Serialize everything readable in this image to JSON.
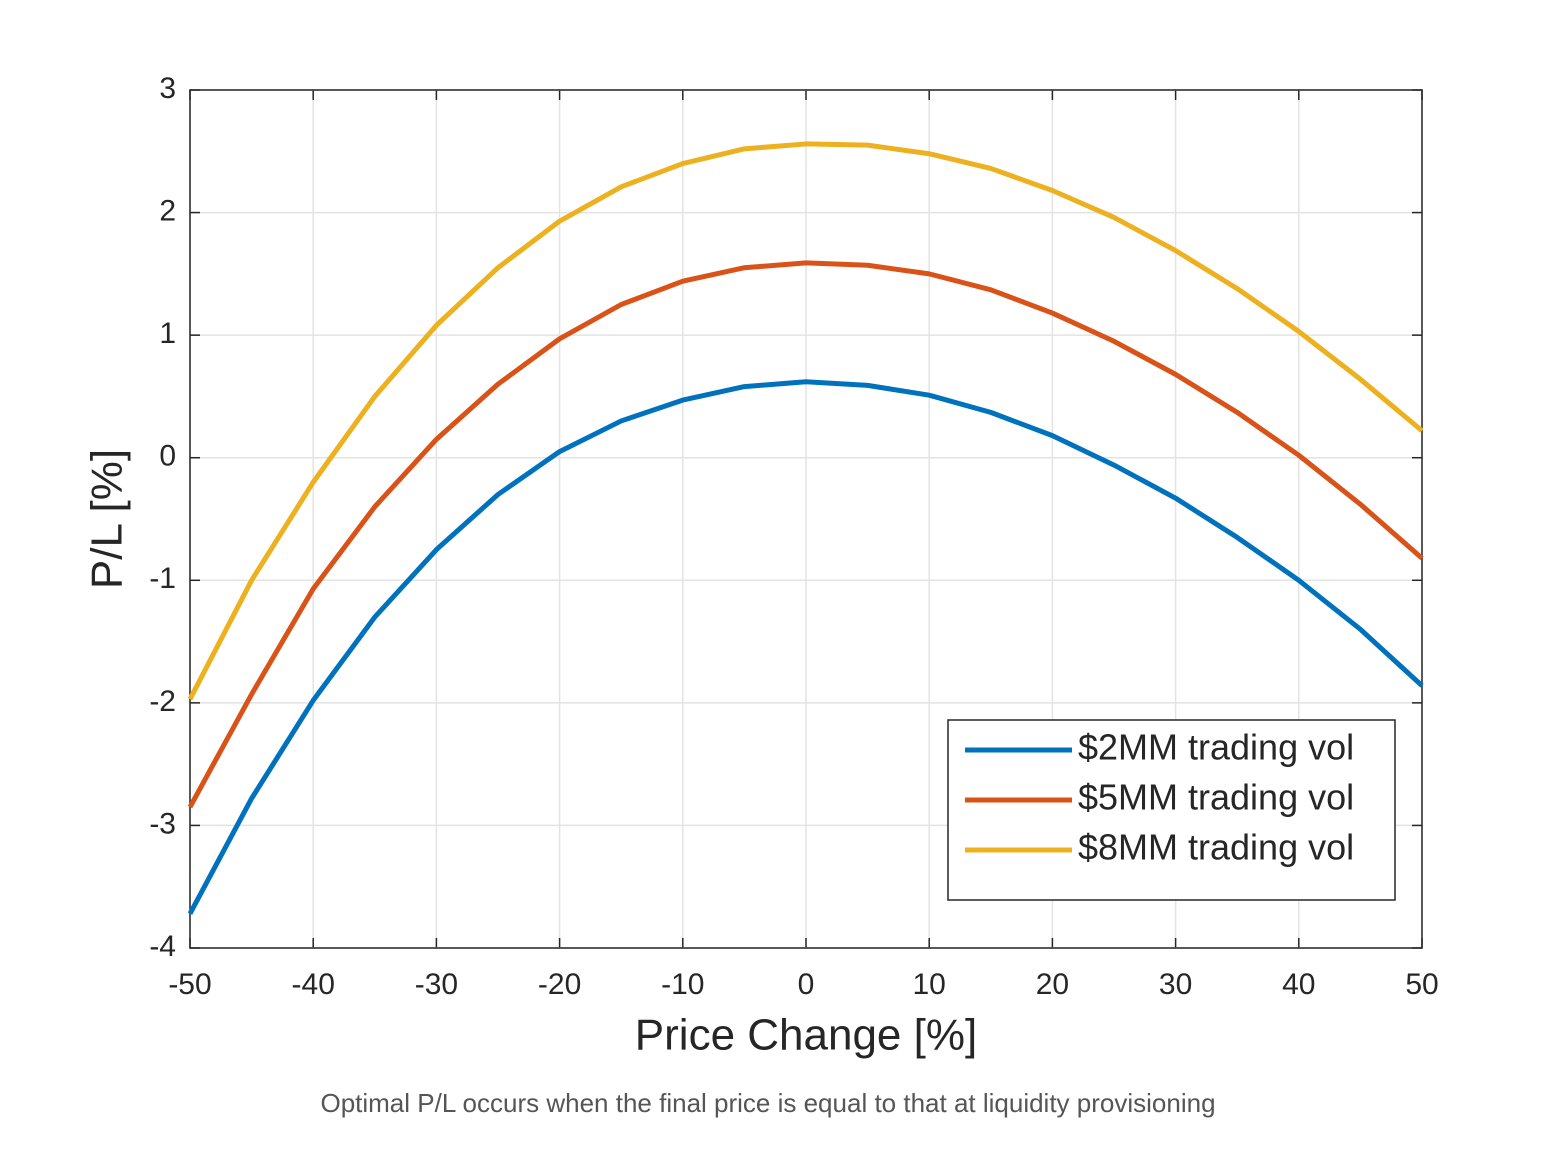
{
  "chart_data": {
    "type": "line",
    "xlabel": "Price Change [%]",
    "ylabel": "P/L [%]",
    "caption": "Optimal P/L occurs when the final price is equal to that at liquidity provisioning",
    "x": [
      -50,
      -45,
      -40,
      -35,
      -30,
      -25,
      -20,
      -15,
      -10,
      -5,
      0,
      5,
      10,
      15,
      20,
      25,
      30,
      35,
      40,
      45,
      50
    ],
    "series": [
      {
        "name": "$2MM trading vol",
        "color": "#0072bd",
        "values": [
          -3.72,
          -2.78,
          -1.98,
          -1.3,
          -0.75,
          -0.3,
          0.05,
          0.3,
          0.47,
          0.58,
          0.62,
          0.59,
          0.51,
          0.37,
          0.18,
          -0.06,
          -0.33,
          -0.65,
          -1.0,
          -1.4,
          -1.86
        ]
      },
      {
        "name": "$5MM trading vol",
        "color": "#d95319",
        "values": [
          -2.85,
          -1.93,
          -1.07,
          -0.4,
          0.15,
          0.6,
          0.97,
          1.25,
          1.44,
          1.55,
          1.59,
          1.57,
          1.5,
          1.37,
          1.18,
          0.95,
          0.68,
          0.37,
          0.02,
          -0.38,
          -0.82
        ]
      },
      {
        "name": "$8MM trading vol",
        "color": "#edb120",
        "values": [
          -1.97,
          -1.0,
          -0.2,
          0.5,
          1.08,
          1.55,
          1.93,
          2.21,
          2.4,
          2.52,
          2.56,
          2.55,
          2.48,
          2.36,
          2.18,
          1.96,
          1.69,
          1.38,
          1.03,
          0.64,
          0.22
        ]
      }
    ],
    "xlim": [
      -50,
      50
    ],
    "xticks": [
      -50,
      -40,
      -30,
      -20,
      -10,
      0,
      10,
      20,
      30,
      40,
      50
    ],
    "ylim": [
      -4,
      3
    ],
    "yticks": [
      -4,
      -3,
      -2,
      -1,
      0,
      1,
      2,
      3
    ],
    "grid": true,
    "legend": "lower right"
  }
}
